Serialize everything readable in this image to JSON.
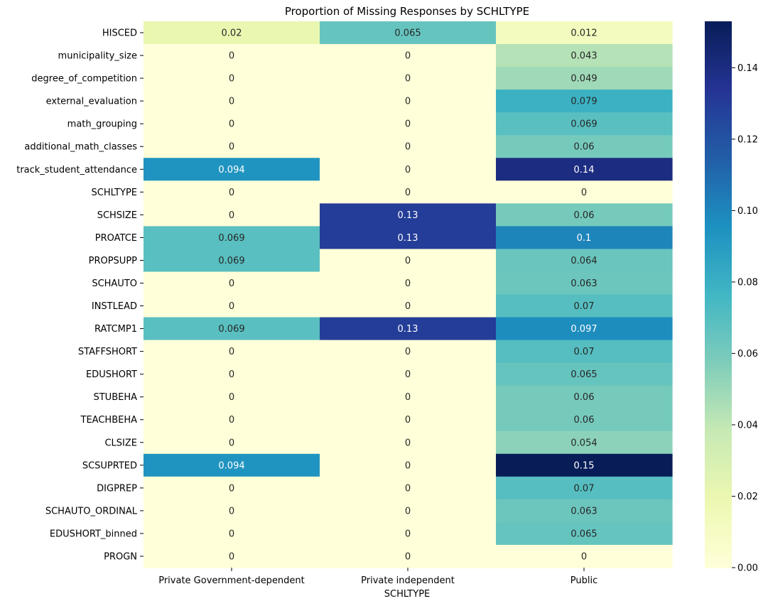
{
  "chart_data": {
    "type": "heatmap",
    "title": "Proportion of Missing Responses by SCHLTYPE",
    "xlabel": "SCHLTYPE",
    "ylabel": "",
    "colormap": "YlGnBu",
    "columns": [
      "Private Government-dependent",
      "Private independent",
      "Public"
    ],
    "rows": [
      "HISCED",
      "municipality_size",
      "degree_of_competition",
      "external_evaluation",
      "math_grouping",
      "additional_math_classes",
      "track_student_attendance",
      "SCHLTYPE",
      "SCHSIZE",
      "PROATCE",
      "PROPSUPP",
      "SCHAUTO",
      "INSTLEAD",
      "RATCMP1",
      "STAFFSHORT",
      "EDUSHORT",
      "STUBEHA",
      "TEACHBEHA",
      "CLSIZE",
      "SCSUPRTED",
      "DIGPREP",
      "SCHAUTO_ORDINAL",
      "EDUSHORT_binned",
      "PROGN"
    ],
    "values": [
      [
        0.0204,
        0.0652,
        0.0122
      ],
      [
        0,
        0,
        0.043
      ],
      [
        0,
        0,
        0.049
      ],
      [
        0,
        0,
        0.079
      ],
      [
        0,
        0,
        0.069
      ],
      [
        0,
        0,
        0.06
      ],
      [
        0.094,
        0,
        0.14
      ],
      [
        0,
        0,
        0
      ],
      [
        0,
        0.13,
        0.06
      ],
      [
        0.069,
        0.13,
        0.1
      ],
      [
        0.069,
        0,
        0.064
      ],
      [
        0,
        0,
        0.063
      ],
      [
        0,
        0,
        0.07
      ],
      [
        0.069,
        0.13,
        0.097
      ],
      [
        0,
        0,
        0.07
      ],
      [
        0,
        0,
        0.065
      ],
      [
        0,
        0,
        0.06
      ],
      [
        0,
        0,
        0.06
      ],
      [
        0,
        0,
        0.054
      ],
      [
        0.094,
        0,
        0.153
      ],
      [
        0,
        0,
        0.07
      ],
      [
        0,
        0,
        0.063
      ],
      [
        0,
        0,
        0.065
      ],
      [
        0,
        0,
        0
      ]
    ],
    "annotations": [
      [
        "0.02",
        "0.065",
        "0.012"
      ],
      [
        "0",
        "0",
        "0.043"
      ],
      [
        "0",
        "0",
        "0.049"
      ],
      [
        "0",
        "0",
        "0.079"
      ],
      [
        "0",
        "0",
        "0.069"
      ],
      [
        "0",
        "0",
        "0.06"
      ],
      [
        "0.094",
        "0",
        "0.14"
      ],
      [
        "0",
        "0",
        "0"
      ],
      [
        "0",
        "0.13",
        "0.06"
      ],
      [
        "0.069",
        "0.13",
        "0.1"
      ],
      [
        "0.069",
        "0",
        "0.064"
      ],
      [
        "0",
        "0",
        "0.063"
      ],
      [
        "0",
        "0",
        "0.07"
      ],
      [
        "0.069",
        "0.13",
        "0.097"
      ],
      [
        "0",
        "0",
        "0.07"
      ],
      [
        "0",
        "0",
        "0.065"
      ],
      [
        "0",
        "0",
        "0.06"
      ],
      [
        "0",
        "0",
        "0.06"
      ],
      [
        "0",
        "0",
        "0.054"
      ],
      [
        "0.094",
        "0",
        "0.15"
      ],
      [
        "0",
        "0",
        "0.07"
      ],
      [
        "0",
        "0",
        "0.063"
      ],
      [
        "0",
        "0",
        "0.065"
      ],
      [
        "0",
        "0",
        "0"
      ]
    ],
    "colorbar": {
      "min": 0,
      "max": 0.153,
      "ticks": [
        "0.00",
        "0.02",
        "0.04",
        "0.06",
        "0.08",
        "0.10",
        "0.12",
        "0.14"
      ]
    },
    "grid": false,
    "legend": "colorbar-right"
  }
}
